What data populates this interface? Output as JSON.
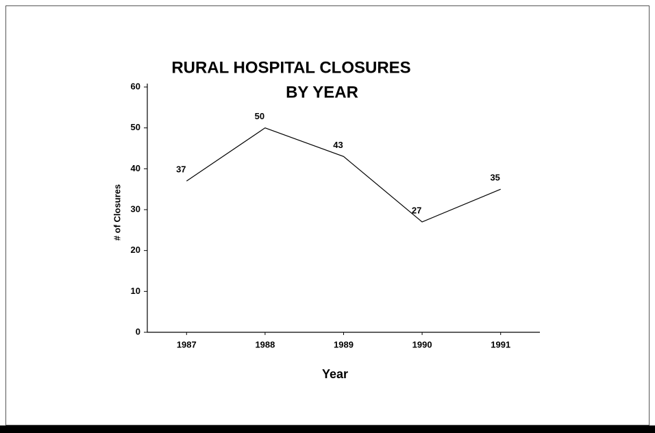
{
  "chart_data": {
    "type": "line",
    "title": [
      "RURAL HOSPITAL CLOSURES",
      "BY YEAR"
    ],
    "x_label": "Year",
    "y_label": "# of Closures",
    "categories": [
      "1987",
      "1988",
      "1989",
      "1990",
      "1991"
    ],
    "values": [
      37,
      50,
      43,
      27,
      35
    ],
    "color": "#000000",
    "ylim": [
      0,
      60
    ],
    "yticks": [
      0,
      10,
      20,
      30,
      40,
      50,
      60
    ],
    "grid": false
  }
}
